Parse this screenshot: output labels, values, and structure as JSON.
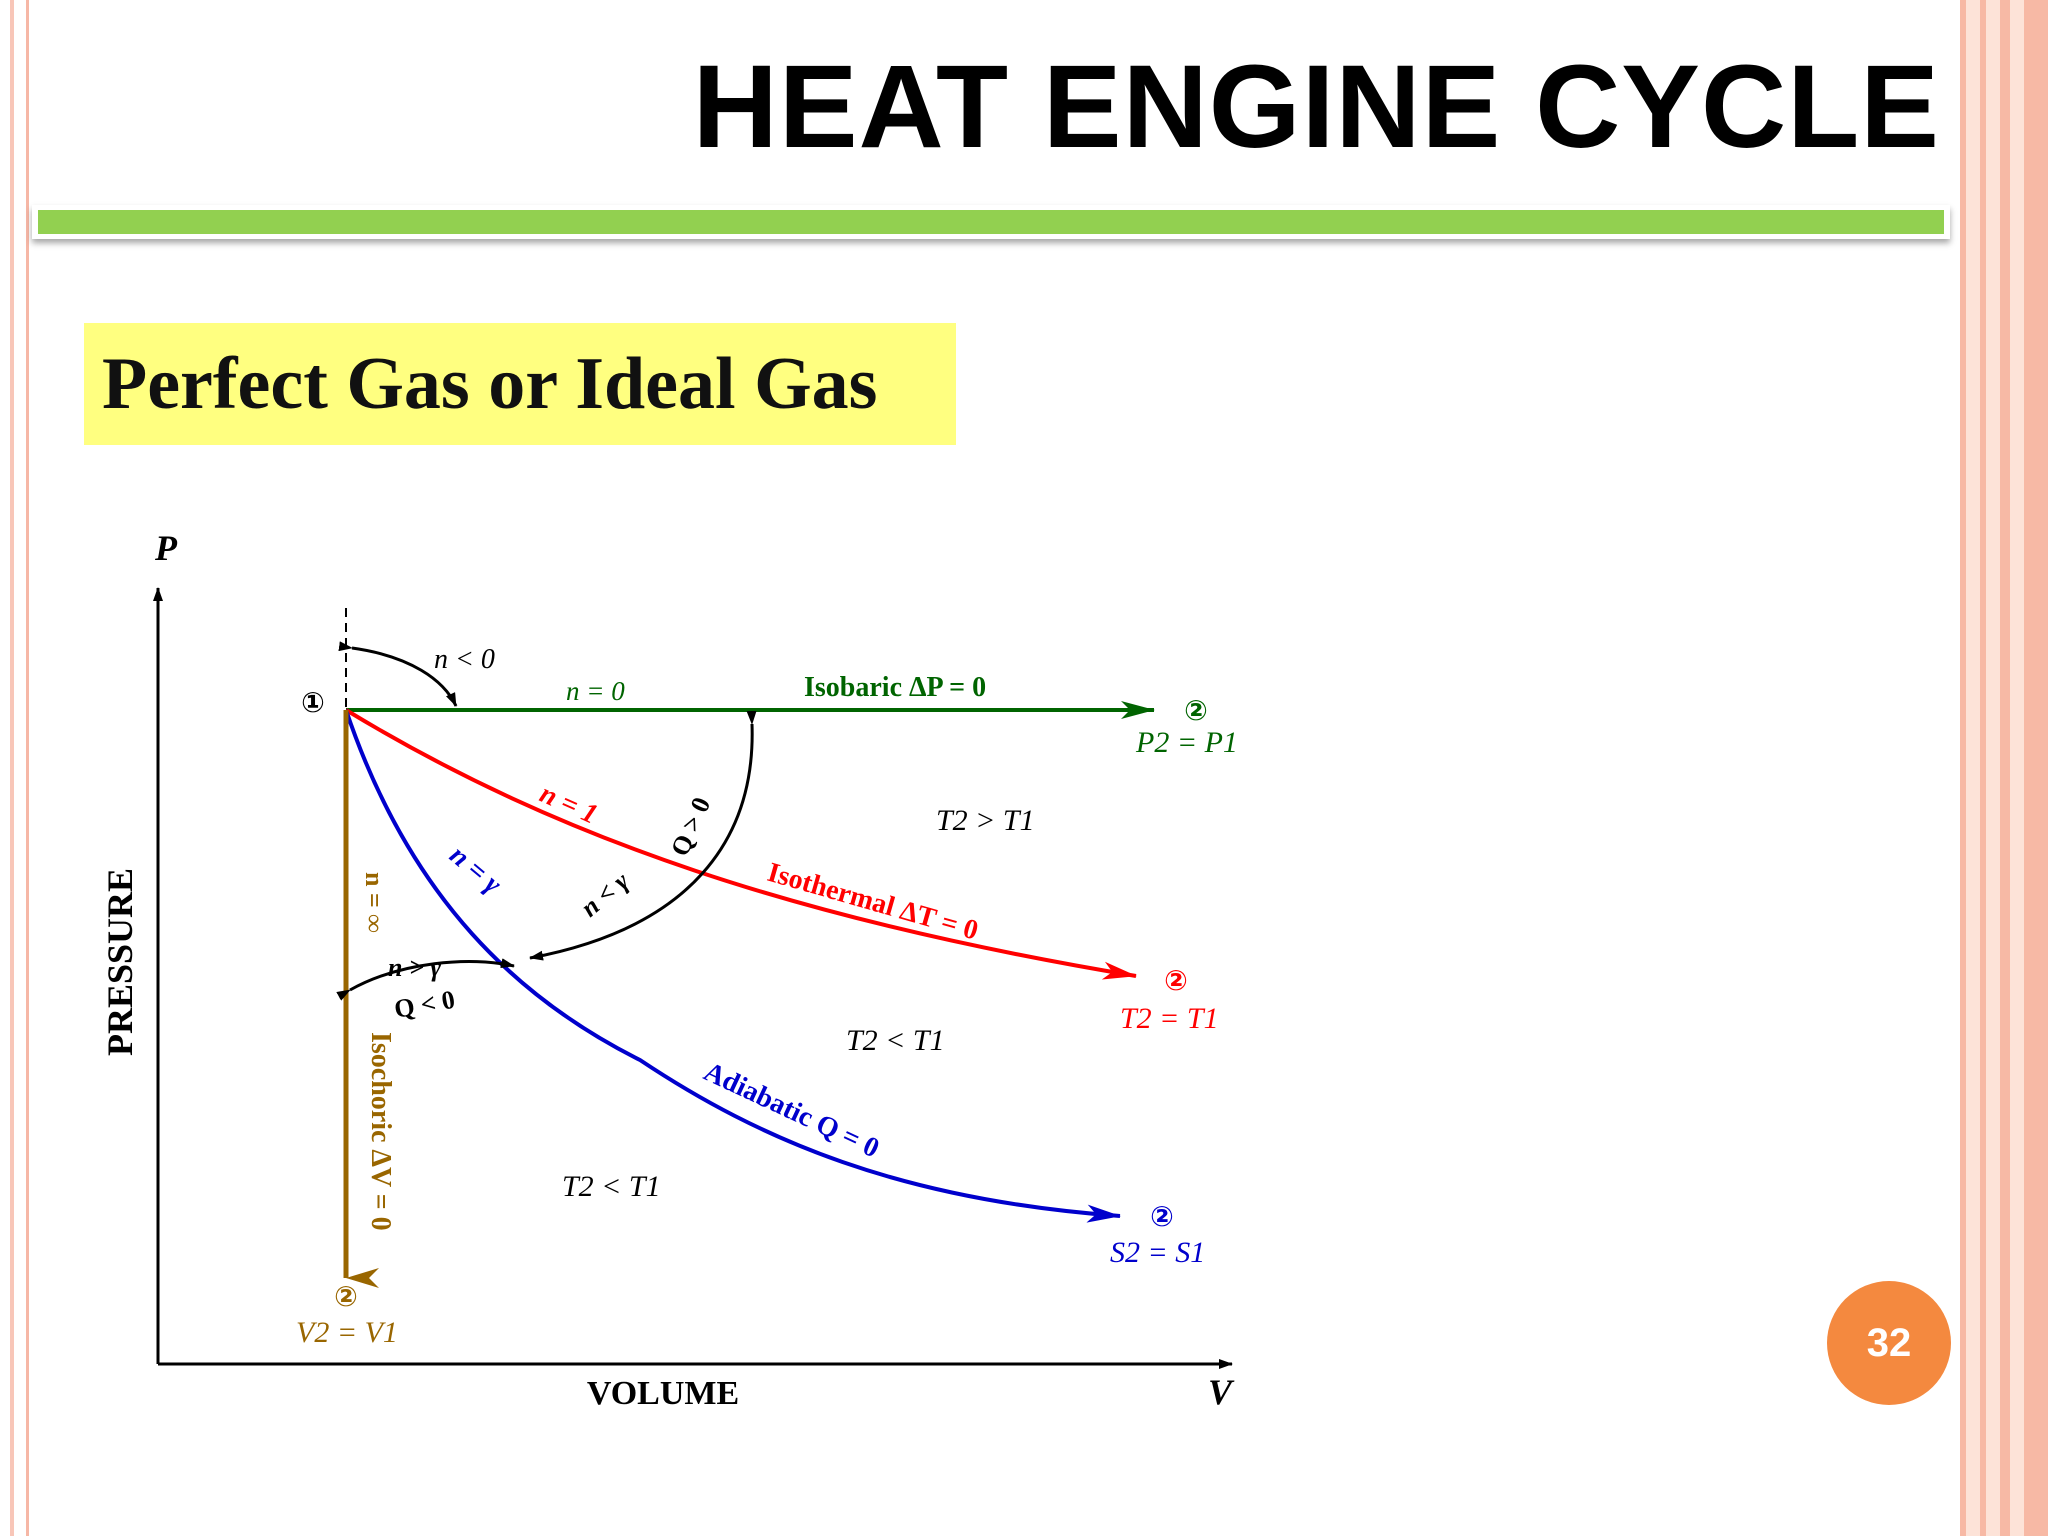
{
  "slide": {
    "title": "HEAT ENGINE CYCLE",
    "subtitle": "Perfect Gas or Ideal Gas",
    "page_number": "32"
  },
  "diagram": {
    "axes": {
      "y_symbol": "P",
      "x_symbol": "V",
      "y_label": "PRESSURE",
      "x_label": "VOLUME"
    },
    "start_point": "①",
    "isobaric": {
      "n_label": "n = 0",
      "name": "Isobaric ΔP = 0",
      "end_point": "②",
      "relation": "P2 = P1",
      "color": "#006400"
    },
    "isothermal": {
      "n_label": "n = 1",
      "name": "Isothermal ΔT = 0",
      "end_point": "②",
      "relation": "T2 = T1",
      "color": "#ff0000"
    },
    "adiabatic": {
      "n_label": "n = γ",
      "name": "Adiabatic Q = 0",
      "end_point": "②",
      "relation": "S2 = S1",
      "color": "#0000cc"
    },
    "isochoric": {
      "n_label": "n = ∞",
      "name": "Isochoric ΔV = 0",
      "end_point": "②",
      "relation": "V2 = V1",
      "color": "#996600"
    },
    "annotations": {
      "n_less_zero": "n < 0",
      "n_less_gamma": "n < γ",
      "q_positive": "Q > 0",
      "n_greater_gamma": "n > γ",
      "q_negative": "Q < 0",
      "region_upper": "T2 > T1",
      "region_middle": "T2 < T1",
      "region_lower": "T2 < T1"
    }
  }
}
